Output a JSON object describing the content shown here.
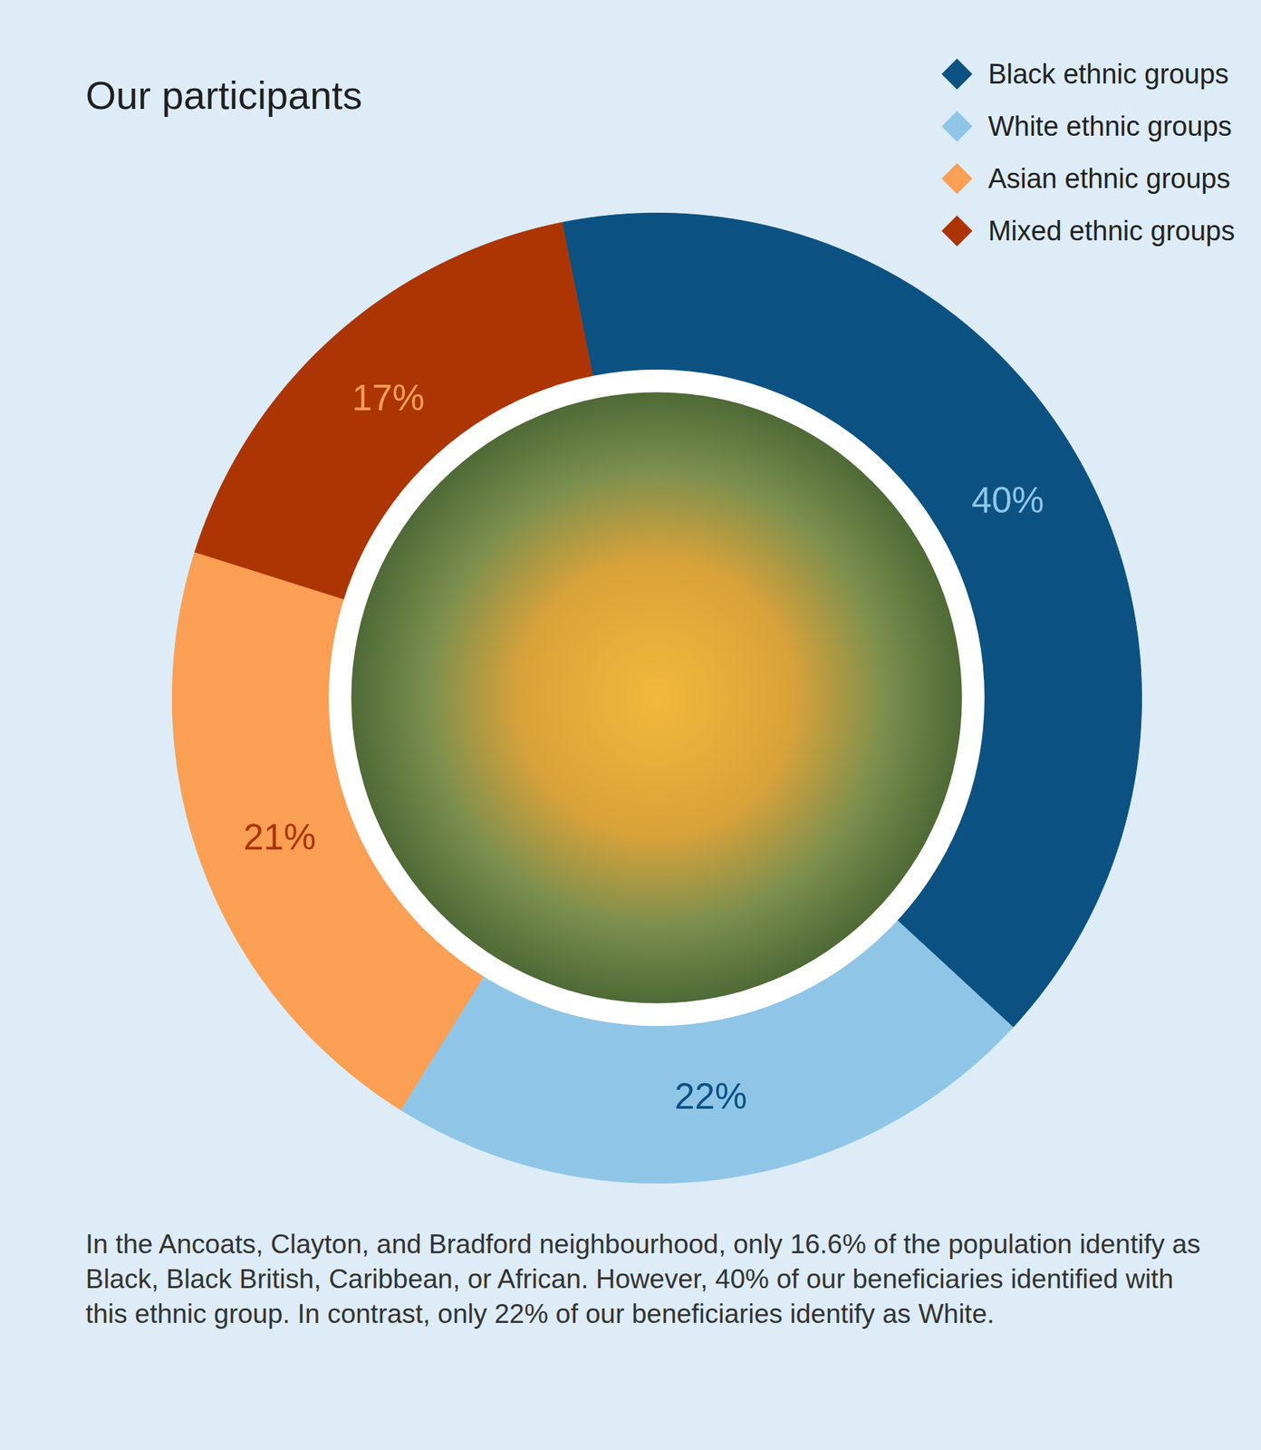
{
  "chart_data": {
    "type": "donut",
    "title": "Our participants",
    "categories": [
      "Black ethnic groups",
      "White ethnic groups",
      "Asian ethnic groups",
      "Mixed ethnic groups"
    ],
    "values": [
      40,
      22,
      21,
      17
    ],
    "value_labels": [
      "40%",
      "22%",
      "21%",
      "17%"
    ],
    "colors": [
      "#0b5182",
      "#8fc6e8",
      "#fb9f55",
      "#ac3503"
    ],
    "data_labels": true,
    "legend": "top-right",
    "caption": "In the Ancoats, Clayton, and Bradford neighbourhood, only 16.6% of the population identify as Black, Black British, Caribbean, or African. However, 40% of our beneficiaries identified with this ethnic group. In contrast, only 22% of our beneficiaries identify as White."
  }
}
